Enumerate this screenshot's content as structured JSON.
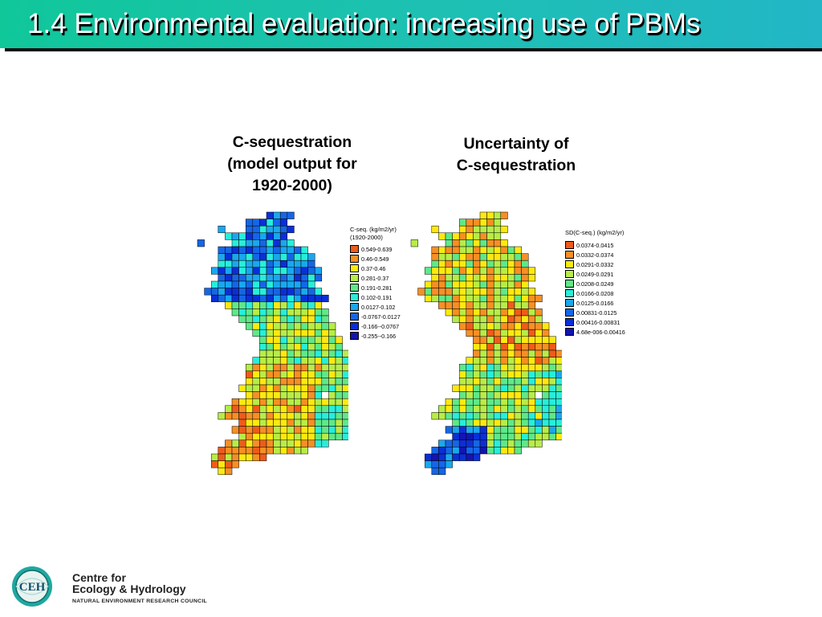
{
  "slide": {
    "title": "1.4 Environmental evaluation: increasing use of PBMs"
  },
  "maps": {
    "left": {
      "caption_lines": [
        "C-sequestration",
        "(model output for",
        "1920-2000)"
      ],
      "legend_title_lines": [
        "C-seq. (kg/m2/yr)",
        "(1920-2000)"
      ],
      "legend": [
        {
          "label": "0.549-0.639",
          "color": "#ef5b1a"
        },
        {
          "label": "0.46-0.549",
          "color": "#f78f24"
        },
        {
          "label": "0.37-0.46",
          "color": "#fde910"
        },
        {
          "label": "0.281-0.37",
          "color": "#b8ec48"
        },
        {
          "label": "0.191-0.281",
          "color": "#5fe888"
        },
        {
          "label": "0.102-0.191",
          "color": "#27eeda"
        },
        {
          "label": "0.0127-0.102",
          "color": "#1aa7ee"
        },
        {
          "label": "-0.0767-0.0127",
          "color": "#1566e6"
        },
        {
          "label": "-0.166--0.0767",
          "color": "#0b2fd6"
        },
        {
          "label": "-0.255--0.166",
          "color": "#1414b0"
        }
      ]
    },
    "right": {
      "caption_lines": [
        "Uncertainty of",
        "C-sequestration"
      ],
      "legend_title_lines": [
        "SD(C-seq.) (kg/m2/yr)"
      ],
      "legend": [
        {
          "label": "0.0374-0.0415",
          "color": "#ef5b1a"
        },
        {
          "label": "0.0332-0.0374",
          "color": "#f78f24"
        },
        {
          "label": "0.0291-0.0332",
          "color": "#fde910"
        },
        {
          "label": "0.0249-0.0291",
          "color": "#b8ec48"
        },
        {
          "label": "0.0208-0.0249",
          "color": "#5fe888"
        },
        {
          "label": "0.0166-0.0208",
          "color": "#27eeda"
        },
        {
          "label": "0.0125-0.0166",
          "color": "#1aa7ee"
        },
        {
          "label": "0.00831-0.0125",
          "color": "#1566e6"
        },
        {
          "label": "0.00416-0.00831",
          "color": "#0b2fd6"
        },
        {
          "label": "4.68e-006-0.00416",
          "color": "#1414b0"
        }
      ]
    }
  },
  "logo": {
    "monogram": "CEH",
    "line1": "Centre for",
    "line2": "Ecology & Hydrology",
    "line3": "NATURAL ENVIRONMENT RESEARCH COUNCIL"
  }
}
